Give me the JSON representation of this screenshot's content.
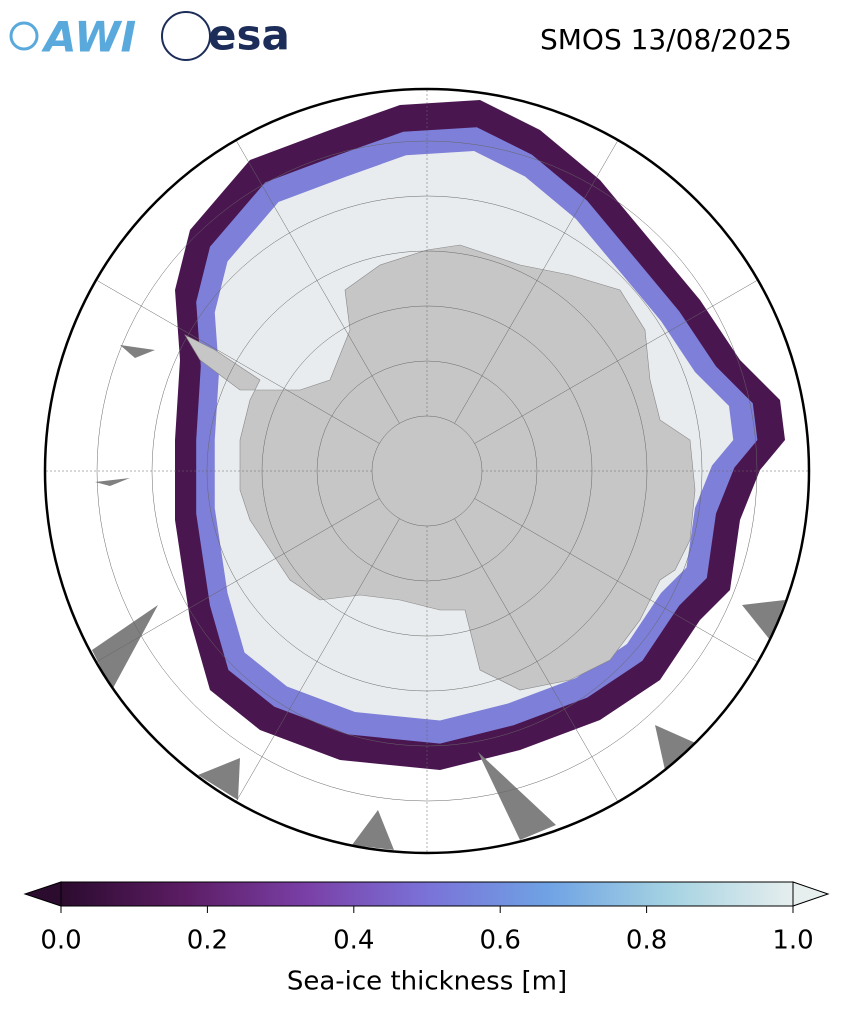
{
  "header": {
    "logos": [
      "AWI",
      "esa"
    ],
    "title": "SMOS 13/08/2025"
  },
  "colorbar": {
    "label": "Sea-ice thickness [m]",
    "lim": [
      0,
      1
    ],
    "ticks": [
      {
        "value": 0,
        "label": "0.0"
      },
      0.2,
      0.4,
      0.6,
      0.8,
      {
        "value": 1,
        "label": "1.0"
      }
    ],
    "colors": [
      "#2b0b2e",
      "#5b1c63",
      "#7a3fa6",
      "#7a72d8",
      "#6fa3e4",
      "#a6d3e2",
      "#e6eeee"
    ]
  }
}
